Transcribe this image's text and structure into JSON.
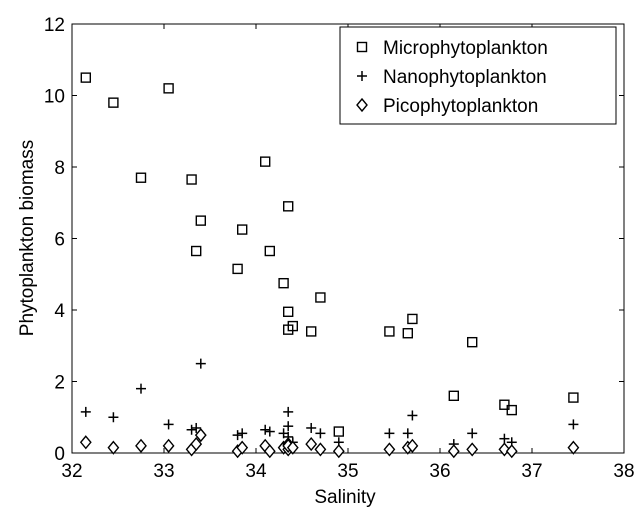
{
  "chart_data": {
    "type": "scatter",
    "xlabel": "Salinity",
    "ylabel": "Phytoplankton biomass",
    "xlim": [
      32,
      38
    ],
    "ylim": [
      0,
      12
    ],
    "xticks": [
      "32",
      "33",
      "34",
      "35",
      "36",
      "37",
      "38"
    ],
    "yticks": [
      "0",
      "2",
      "4",
      "6",
      "8",
      "10",
      "12"
    ],
    "grid": false,
    "legend_position": "top-right",
    "series": [
      {
        "name": "Microphytoplankton",
        "marker": "square",
        "points": [
          [
            32.15,
            10.5
          ],
          [
            32.45,
            9.8
          ],
          [
            32.75,
            7.7
          ],
          [
            33.05,
            10.2
          ],
          [
            33.3,
            7.65
          ],
          [
            33.35,
            5.65
          ],
          [
            33.4,
            6.5
          ],
          [
            33.8,
            5.15
          ],
          [
            33.85,
            6.25
          ],
          [
            34.1,
            8.15
          ],
          [
            34.15,
            5.65
          ],
          [
            34.3,
            4.75
          ],
          [
            34.35,
            6.9
          ],
          [
            34.35,
            3.95
          ],
          [
            34.35,
            3.45
          ],
          [
            34.4,
            3.55
          ],
          [
            34.6,
            3.4
          ],
          [
            34.7,
            4.35
          ],
          [
            34.9,
            0.6
          ],
          [
            35.45,
            3.4
          ],
          [
            35.65,
            3.35
          ],
          [
            35.7,
            3.75
          ],
          [
            36.15,
            1.6
          ],
          [
            36.35,
            3.1
          ],
          [
            36.7,
            1.35
          ],
          [
            36.78,
            1.2
          ],
          [
            37.45,
            1.55
          ]
        ]
      },
      {
        "name": "Nanophytoplankton",
        "marker": "plus",
        "points": [
          [
            32.15,
            1.15
          ],
          [
            32.45,
            1.0
          ],
          [
            32.75,
            1.8
          ],
          [
            33.05,
            0.8
          ],
          [
            33.3,
            0.65
          ],
          [
            33.35,
            0.7
          ],
          [
            33.4,
            2.5
          ],
          [
            33.8,
            0.5
          ],
          [
            33.85,
            0.55
          ],
          [
            34.1,
            0.65
          ],
          [
            34.15,
            0.6
          ],
          [
            34.3,
            0.55
          ],
          [
            34.35,
            1.15
          ],
          [
            34.35,
            0.75
          ],
          [
            34.35,
            0.45
          ],
          [
            34.4,
            0.3
          ],
          [
            34.6,
            0.7
          ],
          [
            34.7,
            0.55
          ],
          [
            34.9,
            0.3
          ],
          [
            35.45,
            0.55
          ],
          [
            35.65,
            0.55
          ],
          [
            35.7,
            1.05
          ],
          [
            36.15,
            0.25
          ],
          [
            36.35,
            0.55
          ],
          [
            36.7,
            0.4
          ],
          [
            36.78,
            0.3
          ],
          [
            37.45,
            0.8
          ]
        ]
      },
      {
        "name": "Picophytoplankton",
        "marker": "diamond",
        "points": [
          [
            32.15,
            0.3
          ],
          [
            32.45,
            0.15
          ],
          [
            32.75,
            0.2
          ],
          [
            33.05,
            0.2
          ],
          [
            33.3,
            0.1
          ],
          [
            33.35,
            0.25
          ],
          [
            33.4,
            0.5
          ],
          [
            33.8,
            0.05
          ],
          [
            33.85,
            0.15
          ],
          [
            34.1,
            0.2
          ],
          [
            34.15,
            0.05
          ],
          [
            34.3,
            0.15
          ],
          [
            34.35,
            0.25
          ],
          [
            34.35,
            0.1
          ],
          [
            34.35,
            0.2
          ],
          [
            34.4,
            0.15
          ],
          [
            34.6,
            0.25
          ],
          [
            34.7,
            0.1
          ],
          [
            34.9,
            0.05
          ],
          [
            35.45,
            0.1
          ],
          [
            35.65,
            0.15
          ],
          [
            35.7,
            0.2
          ],
          [
            36.15,
            0.05
          ],
          [
            36.35,
            0.1
          ],
          [
            36.7,
            0.1
          ],
          [
            36.78,
            0.05
          ],
          [
            37.45,
            0.15
          ]
        ]
      }
    ]
  }
}
